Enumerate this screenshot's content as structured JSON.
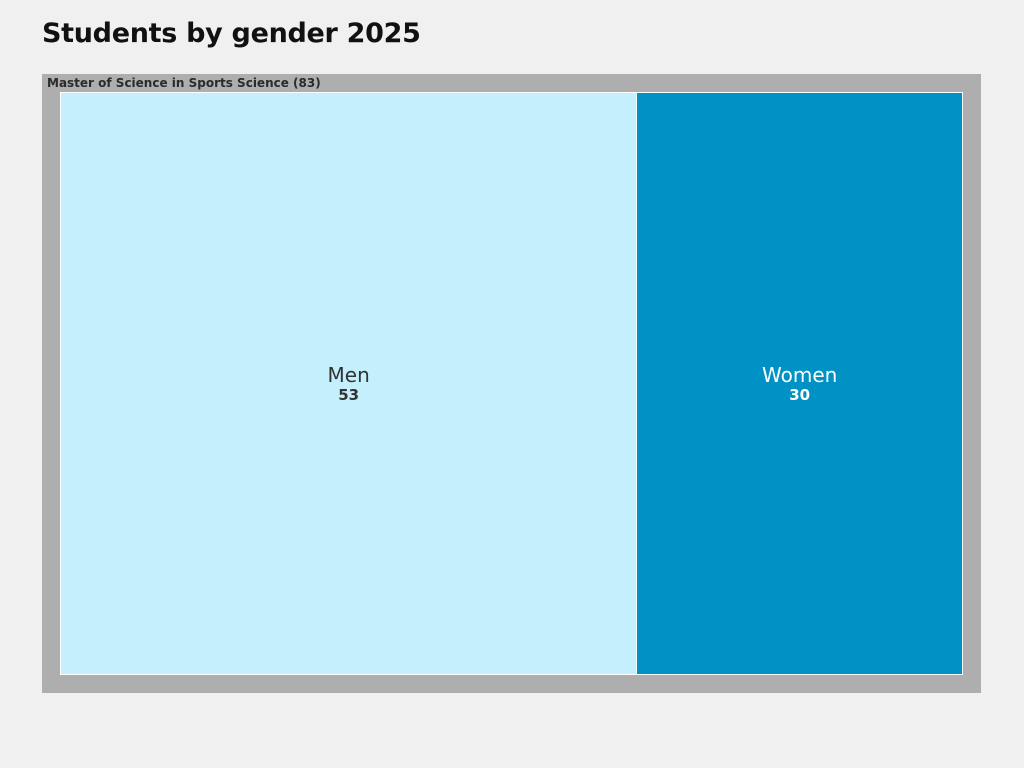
{
  "chart_data": {
    "type": "treemap",
    "title": "Students by gender 2025",
    "group": {
      "label": "Master of Science in Sports Science",
      "total": 83
    },
    "tiles": [
      {
        "name": "Men",
        "value": 53,
        "color": "#c4effd",
        "text_color": "#333333"
      },
      {
        "name": "Women",
        "value": 30,
        "color": "#0092c4",
        "text_color": "#ffffff"
      }
    ]
  }
}
